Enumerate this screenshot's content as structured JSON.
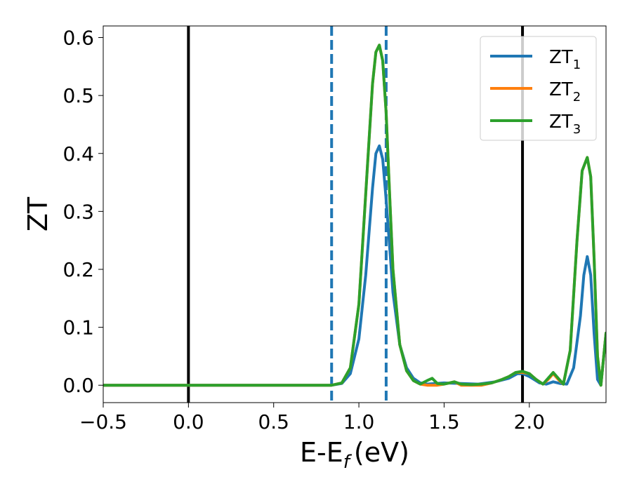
{
  "chart_data": {
    "type": "line",
    "xlabel": "E-E",
    "xlabel_sub": "f",
    "xlabel_unit": "(eV)",
    "ylabel": "ZT",
    "xlim": [
      -0.5,
      2.45
    ],
    "ylim": [
      -0.03,
      0.62
    ],
    "xticks": [
      -0.5,
      0.0,
      0.5,
      1.0,
      1.5,
      2.0
    ],
    "xtick_labels": [
      "−0.5",
      "0.0",
      "0.5",
      "1.0",
      "1.5",
      "2.0"
    ],
    "yticks": [
      0.0,
      0.1,
      0.2,
      0.3,
      0.4,
      0.5,
      0.6
    ],
    "ytick_labels": [
      "0.0",
      "0.1",
      "0.2",
      "0.3",
      "0.4",
      "0.5",
      "0.6"
    ],
    "grid": false,
    "legend_position": "top-right",
    "vertical_lines": [
      {
        "x": 0.0,
        "style": "solid",
        "color": "#000000"
      },
      {
        "x": 1.96,
        "style": "solid",
        "color": "#000000"
      },
      {
        "x": 0.84,
        "style": "dashed",
        "color": "#1f77b4"
      },
      {
        "x": 1.16,
        "style": "dashed",
        "color": "#1f77b4"
      }
    ],
    "series": [
      {
        "name": "ZT",
        "sub": "1",
        "color": "#1f77b4",
        "x": [
          -0.5,
          0.0,
          0.5,
          0.84,
          0.9,
          0.95,
          1.0,
          1.04,
          1.08,
          1.1,
          1.12,
          1.14,
          1.16,
          1.18,
          1.2,
          1.24,
          1.28,
          1.32,
          1.36,
          1.4,
          1.5,
          1.6,
          1.7,
          1.8,
          1.88,
          1.93,
          1.96,
          2.0,
          2.06,
          2.1,
          2.14,
          2.18,
          2.22,
          2.26,
          2.3,
          2.32,
          2.34,
          2.36,
          2.38,
          2.4,
          2.42,
          2.45
        ],
        "y": [
          0.0,
          0.0,
          0.0,
          0.0,
          0.003,
          0.02,
          0.08,
          0.19,
          0.34,
          0.4,
          0.413,
          0.39,
          0.32,
          0.24,
          0.16,
          0.07,
          0.03,
          0.012,
          0.004,
          0.002,
          0.004,
          0.003,
          0.002,
          0.006,
          0.012,
          0.02,
          0.02,
          0.015,
          0.004,
          0.002,
          0.006,
          0.003,
          0.002,
          0.03,
          0.12,
          0.19,
          0.222,
          0.19,
          0.09,
          0.01,
          0.0,
          0.09
        ]
      },
      {
        "name": "ZT",
        "sub": "2",
        "color": "#ff7f0e",
        "x": [
          -0.5,
          0.0,
          0.5,
          0.84,
          0.9,
          0.95,
          1.0,
          1.04,
          1.08,
          1.1,
          1.12,
          1.14,
          1.16,
          1.18,
          1.2,
          1.24,
          1.28,
          1.32,
          1.36,
          1.4,
          1.43,
          1.46,
          1.5,
          1.56,
          1.6,
          1.66,
          1.72,
          1.78,
          1.84,
          1.88,
          1.92,
          1.96,
          2.0,
          2.04,
          2.08,
          2.11,
          2.14,
          2.17,
          2.2,
          2.24,
          2.28,
          2.31,
          2.34,
          2.36,
          2.38,
          2.4,
          2.42,
          2.45
        ],
        "y": [
          0.0,
          0.0,
          0.0,
          0.0,
          0.004,
          0.03,
          0.14,
          0.33,
          0.52,
          0.575,
          0.587,
          0.56,
          0.47,
          0.33,
          0.2,
          0.07,
          0.025,
          0.008,
          0.002,
          0.0,
          0.0,
          0.0,
          0.002,
          0.006,
          0.0,
          0.0,
          0.0,
          0.004,
          0.01,
          0.015,
          0.022,
          0.022,
          0.02,
          0.01,
          0.002,
          0.01,
          0.02,
          0.01,
          0.002,
          0.06,
          0.25,
          0.37,
          0.393,
          0.36,
          0.22,
          0.05,
          0.0,
          0.09
        ]
      },
      {
        "name": "ZT",
        "sub": "3",
        "color": "#2ca02c",
        "x": [
          -0.5,
          0.0,
          0.5,
          0.84,
          0.9,
          0.95,
          1.0,
          1.04,
          1.08,
          1.1,
          1.12,
          1.14,
          1.16,
          1.18,
          1.2,
          1.24,
          1.28,
          1.32,
          1.36,
          1.4,
          1.43,
          1.46,
          1.5,
          1.56,
          1.6,
          1.66,
          1.72,
          1.78,
          1.84,
          1.88,
          1.92,
          1.96,
          2.0,
          2.04,
          2.08,
          2.11,
          2.14,
          2.17,
          2.2,
          2.24,
          2.28,
          2.31,
          2.34,
          2.36,
          2.38,
          2.4,
          2.42,
          2.45
        ],
        "y": [
          0.0,
          0.0,
          0.0,
          0.0,
          0.004,
          0.03,
          0.14,
          0.33,
          0.52,
          0.575,
          0.587,
          0.56,
          0.47,
          0.33,
          0.2,
          0.07,
          0.025,
          0.008,
          0.002,
          0.008,
          0.012,
          0.003,
          0.002,
          0.006,
          0.002,
          0.001,
          0.002,
          0.004,
          0.01,
          0.015,
          0.022,
          0.024,
          0.02,
          0.01,
          0.002,
          0.012,
          0.022,
          0.012,
          0.002,
          0.06,
          0.25,
          0.37,
          0.393,
          0.36,
          0.22,
          0.05,
          0.0,
          0.09
        ]
      }
    ]
  }
}
